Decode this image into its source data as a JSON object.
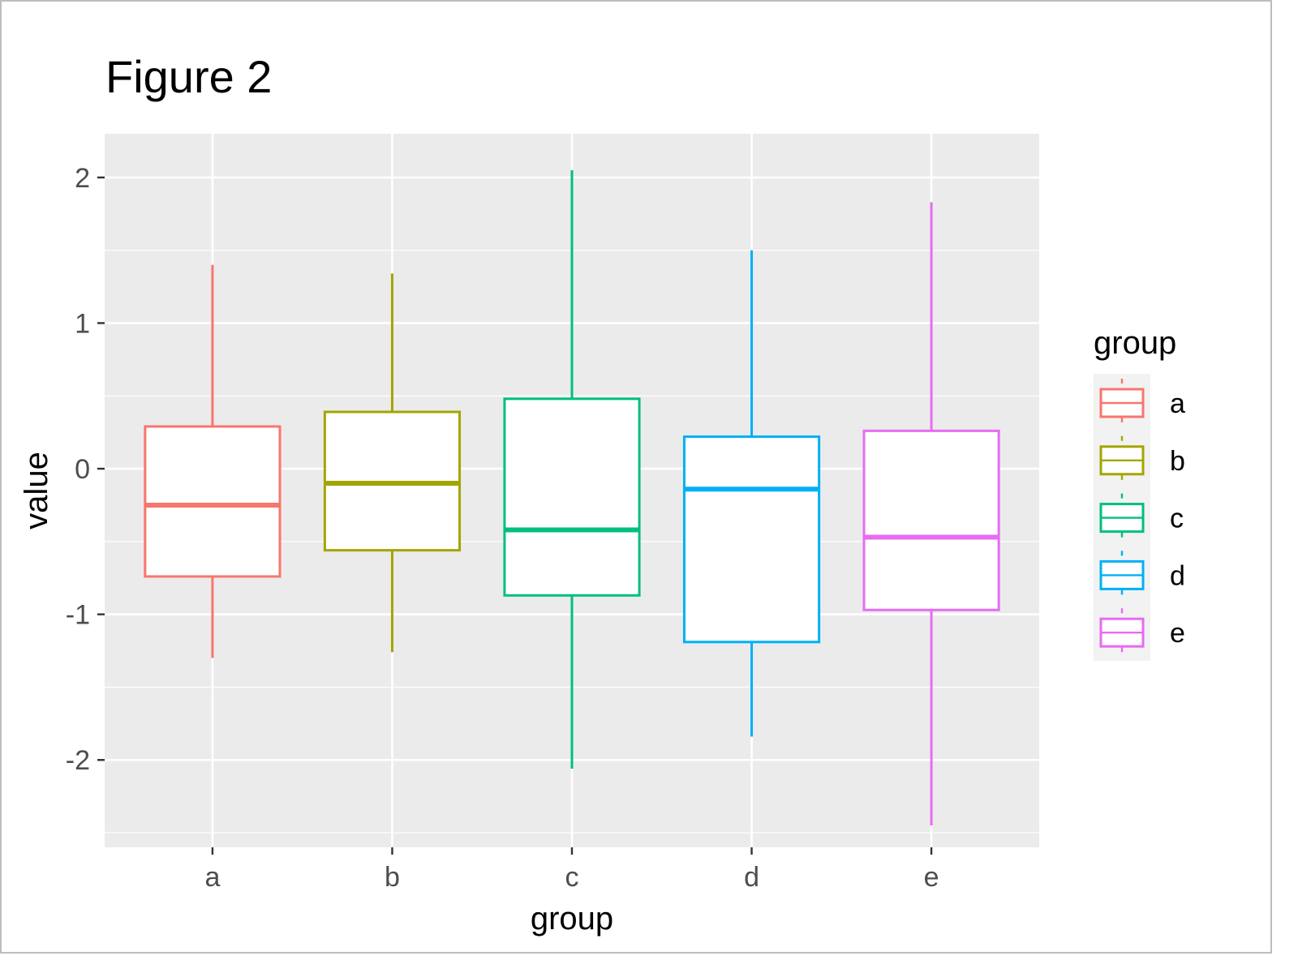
{
  "chart_data": {
    "type": "box",
    "title": "Figure 2",
    "xlabel": "group",
    "ylabel": "value",
    "categories": [
      "a",
      "b",
      "c",
      "d",
      "e"
    ],
    "ylim": [
      -2.6,
      2.3
    ],
    "yticks": [
      -2,
      -1,
      0,
      1,
      2
    ],
    "ytick_labels": [
      "-2",
      "-1",
      "0",
      "1",
      "2"
    ],
    "grid": true,
    "legend": {
      "title": "group",
      "placement": "right"
    },
    "boxes": [
      {
        "group": "a",
        "whisker_low": -1.3,
        "q1": -0.74,
        "median": -0.25,
        "q3": 0.29,
        "whisker_high": 1.4,
        "color": "#F8766D"
      },
      {
        "group": "b",
        "whisker_low": -1.26,
        "q1": -0.56,
        "median": -0.1,
        "q3": 0.39,
        "whisker_high": 1.34,
        "color": "#A3A500"
      },
      {
        "group": "c",
        "whisker_low": -2.06,
        "q1": -0.87,
        "median": -0.42,
        "q3": 0.48,
        "whisker_high": 2.05,
        "color": "#00BF7D"
      },
      {
        "group": "d",
        "whisker_low": -1.84,
        "q1": -1.19,
        "median": -0.14,
        "q3": 0.22,
        "whisker_high": 1.5,
        "color": "#00B0F6"
      },
      {
        "group": "e",
        "whisker_low": -2.45,
        "q1": -0.97,
        "median": -0.47,
        "q3": 0.26,
        "whisker_high": 1.83,
        "color": "#E76BF3"
      }
    ]
  }
}
